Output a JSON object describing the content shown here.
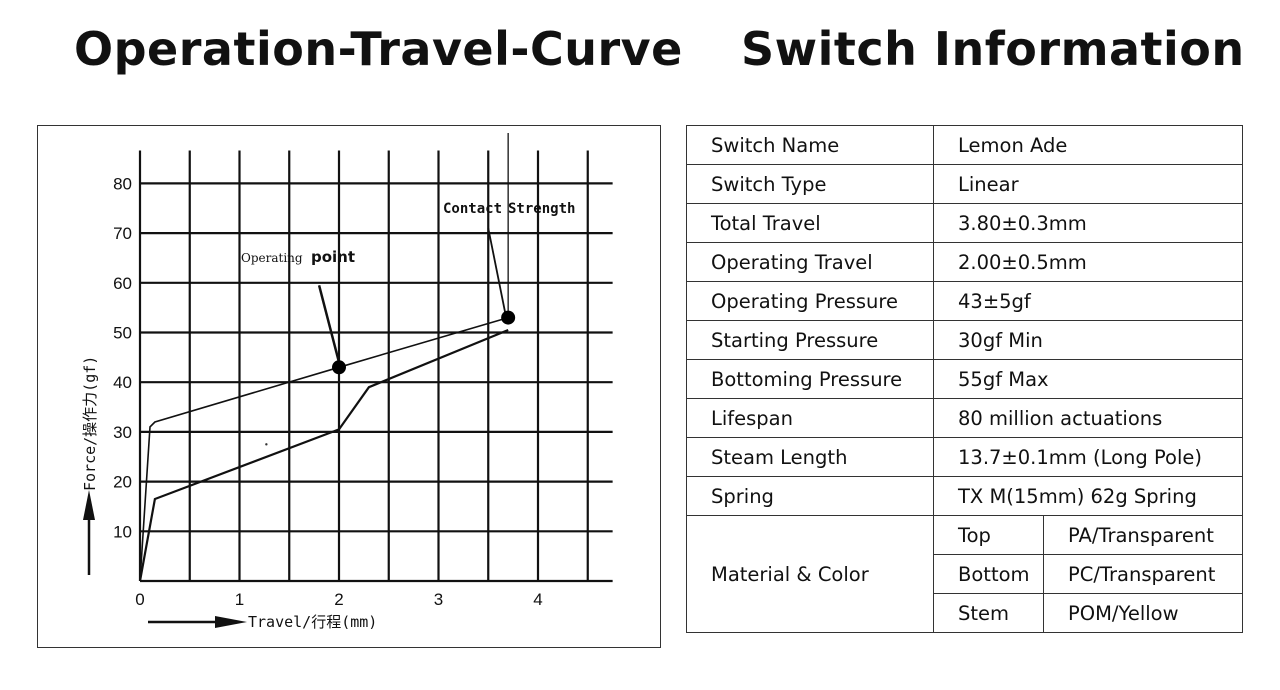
{
  "headings": {
    "left": "Operation-Travel-Curve",
    "right": "Switch Information"
  },
  "chart_data": {
    "type": "line",
    "title": "Operation-Travel-Curve",
    "xlabel": "Travel/行程(mm)",
    "ylabel": "Force/操作力(gf)",
    "xlim": [
      0,
      4.75
    ],
    "ylim": [
      0,
      85
    ],
    "x_ticks": [
      0,
      1,
      2,
      3,
      4
    ],
    "y_ticks": [
      10,
      20,
      30,
      40,
      50,
      60,
      70,
      80
    ],
    "grid": true,
    "series": [
      {
        "points": [
          [
            0,
            0
          ],
          [
            0.1,
            31
          ],
          [
            0.15,
            32
          ],
          [
            2,
            43
          ],
          [
            3.7,
            53
          ]
        ]
      },
      {
        "points": [
          [
            0,
            0
          ],
          [
            0.15,
            16.5
          ],
          [
            2,
            30.5
          ],
          [
            2.3,
            39
          ],
          [
            3.7,
            50.5
          ]
        ]
      }
    ],
    "markers": [
      [
        2,
        43
      ],
      [
        3.7,
        53
      ]
    ],
    "annotations": [
      {
        "label_prefix": "Operating",
        "label_main": "point",
        "target": [
          2,
          43
        ]
      },
      {
        "label_prefix": "Contact",
        "label_main": "Strength",
        "target": [
          3.7,
          53
        ]
      }
    ]
  },
  "table": {
    "rows": [
      {
        "name": "Switch Name",
        "value": "Lemon Ade"
      },
      {
        "name": "Switch Type",
        "value": "Linear"
      },
      {
        "name": "Total Travel",
        "value": "3.80±0.3mm"
      },
      {
        "name": "Operating Travel",
        "value": "2.00±0.5mm"
      },
      {
        "name": "Operating Pressure",
        "value": "43±5gf"
      },
      {
        "name": "Starting Pressure",
        "value": "30gf Min"
      },
      {
        "name": "Bottoming Pressure",
        "value": "55gf Max"
      },
      {
        "name": "Lifespan",
        "value": "80 million actuations"
      },
      {
        "name": "Steam Length",
        "value": "13.7±0.1mm (Long Pole)"
      },
      {
        "name": "Spring",
        "value": "TX M(15mm) 62g Spring"
      }
    ],
    "material": {
      "name": "Material & Color",
      "parts": [
        {
          "part": "Top",
          "value": "PA/Transparent"
        },
        {
          "part": "Bottom",
          "value": "PC/Transparent"
        },
        {
          "part": "Stem",
          "value": "POM/Yellow"
        }
      ]
    }
  }
}
